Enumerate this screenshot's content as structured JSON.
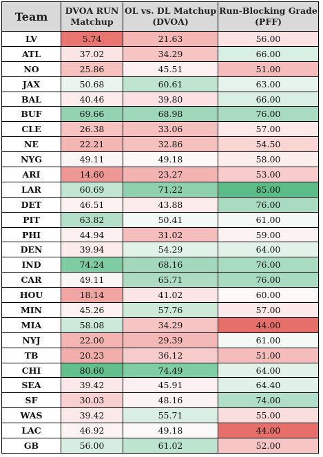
{
  "headers": {
    "team": "Team",
    "dvoa_run": [
      "DVOA RUN",
      "Matchup"
    ],
    "ol_dl": [
      "OL vs. DL Matchup",
      "(DVOA)"
    ],
    "run_block": [
      "Run-Blocking Grade",
      "(PFF)"
    ]
  },
  "rows": [
    {
      "team": "LV",
      "dvoa_run": "5.74",
      "ol_dl": "21.63",
      "grade": "56.00",
      "colors": [
        "#e8756f",
        "#f4b7b4",
        "#fbe3e3"
      ]
    },
    {
      "team": "ATL",
      "dvoa_run": "37.02",
      "ol_dl": "34.29",
      "grade": "66.00",
      "colors": [
        "#fce4e4",
        "#f6c4c3",
        "#d9efe3"
      ]
    },
    {
      "team": "NO",
      "dvoa_run": "25.86",
      "ol_dl": "45.51",
      "grade": "51.00",
      "colors": [
        "#f6c1bf",
        "#fdf0f0",
        "#f5bcbb"
      ]
    },
    {
      "team": "JAX",
      "dvoa_run": "50.68",
      "ol_dl": "60.61",
      "grade": "63.00",
      "colors": [
        "#eaf5ef",
        "#bfe5d0",
        "#e7f4ed"
      ]
    },
    {
      "team": "BAL",
      "dvoa_run": "40.46",
      "ol_dl": "39.80",
      "grade": "66.00",
      "colors": [
        "#fdecec",
        "#fbe1e1",
        "#d9efe3"
      ]
    },
    {
      "team": "BUF",
      "dvoa_run": "69.66",
      "ol_dl": "68.98",
      "grade": "76.00",
      "colors": [
        "#94d3b2",
        "#9fd7ba",
        "#a9dbc1"
      ]
    },
    {
      "team": "CLE",
      "dvoa_run": "26.38",
      "ol_dl": "33.06",
      "grade": "57.00",
      "colors": [
        "#f6c3c1",
        "#f6c0bf",
        "#fde9e9"
      ]
    },
    {
      "team": "NE",
      "dvoa_run": "22.21",
      "ol_dl": "32.86",
      "grade": "54.50",
      "colors": [
        "#f4b6b3",
        "#f6c0bf",
        "#f9d5d4"
      ]
    },
    {
      "team": "NYG",
      "dvoa_run": "49.11",
      "ol_dl": "49.18",
      "grade": "58.00",
      "colors": [
        "#fbf6f6",
        "#fbf8f8",
        "#fdeeee"
      ]
    },
    {
      "team": "ARI",
      "dvoa_run": "14.60",
      "ol_dl": "23.27",
      "grade": "53.00",
      "colors": [
        "#ee9896",
        "#f3b3b1",
        "#f8cccb"
      ]
    },
    {
      "team": "LAR",
      "dvoa_run": "60.69",
      "ol_dl": "71.22",
      "grade": "85.00",
      "colors": [
        "#c1e5d1",
        "#8fd1ad",
        "#5cbd88"
      ]
    },
    {
      "team": "DET",
      "dvoa_run": "46.51",
      "ol_dl": "43.88",
      "grade": "76.00",
      "colors": [
        "#fdf2f2",
        "#fcebeb",
        "#a9dbc1"
      ]
    },
    {
      "team": "PIT",
      "dvoa_run": "63.82",
      "ol_dl": "50.41",
      "grade": "61.00",
      "colors": [
        "#b3dfc6",
        "#f3f9f5",
        "#f4f9f6"
      ]
    },
    {
      "team": "PHI",
      "dvoa_run": "44.94",
      "ol_dl": "31.02",
      "grade": "59.00",
      "colors": [
        "#fdf0f0",
        "#f5bdbb",
        "#fdf2f2"
      ]
    },
    {
      "team": "DEN",
      "dvoa_run": "39.94",
      "ol_dl": "54.29",
      "grade": "64.00",
      "colors": [
        "#fcebeb",
        "#e1f2e8",
        "#e2f2e9"
      ]
    },
    {
      "team": "IND",
      "dvoa_run": "74.24",
      "ol_dl": "68.16",
      "grade": "76.00",
      "colors": [
        "#7fcba2",
        "#a3d8bc",
        "#a9dbc1"
      ]
    },
    {
      "team": "CAR",
      "dvoa_run": "49.11",
      "ol_dl": "65.71",
      "grade": "76.00",
      "colors": [
        "#fbf6f6",
        "#addcc2",
        "#a9dbc1"
      ]
    },
    {
      "team": "HOU",
      "dvoa_run": "18.14",
      "ol_dl": "41.02",
      "grade": "60.00",
      "colors": [
        "#f1a6a3",
        "#fbe5e5",
        "#fdf9f9"
      ]
    },
    {
      "team": "MIN",
      "dvoa_run": "45.26",
      "ol_dl": "57.76",
      "grade": "57.00",
      "colors": [
        "#fdf1f1",
        "#cdead9",
        "#fde9e9"
      ]
    },
    {
      "team": "MIA",
      "dvoa_run": "58.08",
      "ol_dl": "34.29",
      "grade": "44.00",
      "colors": [
        "#cce9d9",
        "#f6c4c3",
        "#e66f6a"
      ]
    },
    {
      "team": "NYJ",
      "dvoa_run": "22.00",
      "ol_dl": "29.39",
      "grade": "61.00",
      "colors": [
        "#f4b5b2",
        "#f4b8b6",
        "#f4f9f6"
      ]
    },
    {
      "team": "TB",
      "dvoa_run": "20.23",
      "ol_dl": "36.12",
      "grade": "51.00",
      "colors": [
        "#f2aeab",
        "#f7cccb",
        "#f5bcbb"
      ]
    },
    {
      "team": "CHI",
      "dvoa_run": "80.60",
      "ol_dl": "74.49",
      "grade": "64.00",
      "colors": [
        "#63c08d",
        "#80cca3",
        "#e2f2e9"
      ]
    },
    {
      "team": "SEA",
      "dvoa_run": "39.42",
      "ol_dl": "45.91",
      "grade": "64.40",
      "colors": [
        "#fbe9e9",
        "#fdf0f0",
        "#e0f1e8"
      ]
    },
    {
      "team": "SF",
      "dvoa_run": "30.03",
      "ol_dl": "48.16",
      "grade": "74.00",
      "colors": [
        "#f8d0cf",
        "#fcf4f4",
        "#b1dec6"
      ]
    },
    {
      "team": "WAS",
      "dvoa_run": "39.42",
      "ol_dl": "55.71",
      "grade": "55.00",
      "colors": [
        "#fbe9e9",
        "#d9efe3",
        "#fadedd"
      ]
    },
    {
      "team": "LAC",
      "dvoa_run": "46.92",
      "ol_dl": "49.18",
      "grade": "44.00",
      "colors": [
        "#fdf3f3",
        "#fbf8f8",
        "#e66f6a"
      ]
    },
    {
      "team": "GB",
      "dvoa_run": "56.00",
      "ol_dl": "61.02",
      "grade": "52.00",
      "colors": [
        "#d6eee1",
        "#bde4cf",
        "#f7c5c4"
      ]
    }
  ]
}
